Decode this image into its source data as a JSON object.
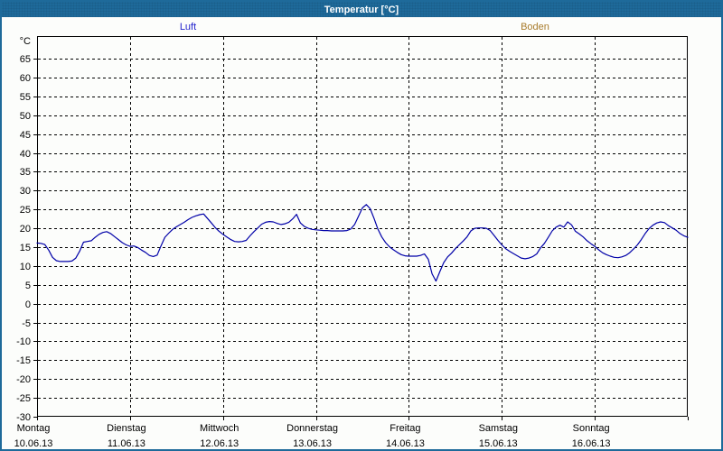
{
  "window": {
    "title": "Temperatur [°C]"
  },
  "legend": {
    "luft": {
      "label": "Luft",
      "color": "#2323cd"
    },
    "boden": {
      "label": "Boden",
      "color": "#a87b2b"
    }
  },
  "chart_data": {
    "type": "line",
    "title": "Temperatur [°C]",
    "unit_label": "°C",
    "grid": "dashed",
    "legend_position": "top",
    "ylim": [
      -30,
      71
    ],
    "y_ticks": [
      65,
      60,
      55,
      50,
      45,
      40,
      35,
      30,
      25,
      20,
      15,
      10,
      5,
      0,
      -5,
      -10,
      -15,
      -20,
      -25,
      -30
    ],
    "x_hours_total": 168,
    "x_categories": [
      {
        "day": "Montag",
        "date": "10.06.13"
      },
      {
        "day": "Dienstag",
        "date": "11.06.13"
      },
      {
        "day": "Mittwoch",
        "date": "12.06.13"
      },
      {
        "day": "Donnerstag",
        "date": "13.06.13"
      },
      {
        "day": "Freitag",
        "date": "14.06.13"
      },
      {
        "day": "Samstag",
        "date": "15.06.13"
      },
      {
        "day": "Sonntag",
        "date": "16.06.13"
      }
    ],
    "series": [
      {
        "name": "Luft",
        "color": "#0000a8",
        "hour_step": 1,
        "values": [
          16.1,
          16.0,
          15.7,
          14.2,
          12.3,
          11.4,
          11.2,
          11.2,
          11.2,
          11.3,
          12.1,
          13.9,
          16.3,
          16.5,
          16.7,
          17.6,
          18.4,
          18.9,
          19.1,
          18.6,
          17.8,
          17.0,
          16.2,
          15.6,
          15.2,
          15.3,
          14.9,
          14.2,
          13.6,
          12.8,
          12.5,
          12.9,
          15.3,
          17.6,
          18.7,
          19.7,
          20.4,
          21.0,
          21.6,
          22.3,
          22.9,
          23.3,
          23.6,
          23.8,
          22.6,
          21.4,
          20.2,
          19.2,
          18.4,
          17.7,
          17.0,
          16.5,
          16.4,
          16.5,
          16.8,
          18.0,
          19.1,
          20.1,
          21.1,
          21.6,
          21.8,
          21.7,
          21.3,
          21.0,
          21.2,
          21.6,
          22.5,
          23.7,
          21.4,
          20.5,
          20.0,
          19.7,
          19.6,
          19.5,
          19.4,
          19.4,
          19.3,
          19.3,
          19.3,
          19.3,
          19.4,
          19.8,
          21.0,
          23.2,
          25.4,
          26.3,
          25.2,
          22.6,
          19.8,
          17.7,
          16.2,
          15.1,
          14.3,
          13.6,
          13.0,
          12.7,
          12.6,
          12.6,
          12.6,
          12.8,
          13.2,
          11.8,
          7.9,
          6.0,
          8.5,
          10.9,
          12.4,
          13.4,
          14.6,
          15.6,
          16.6,
          17.7,
          19.3,
          20.0,
          20.1,
          20.1,
          20.0,
          19.4,
          18.1,
          16.8,
          15.6,
          14.6,
          13.9,
          13.3,
          12.7,
          12.1,
          11.9,
          12.1,
          12.5,
          13.2,
          14.8,
          16.0,
          17.6,
          19.3,
          20.3,
          20.8,
          20.3,
          21.7,
          20.9,
          19.2,
          18.5,
          17.7,
          16.7,
          15.9,
          15.2,
          14.3,
          13.5,
          13.0,
          12.6,
          12.3,
          12.2,
          12.4,
          12.8,
          13.5,
          14.5,
          15.6,
          17.0,
          18.6,
          19.9,
          20.8,
          21.4,
          21.7,
          21.5,
          20.7,
          20.1,
          19.5,
          18.6,
          18.0,
          17.6
        ]
      },
      {
        "name": "Boden",
        "color": "#a87b2b",
        "hour_step": 1,
        "values": []
      }
    ]
  }
}
